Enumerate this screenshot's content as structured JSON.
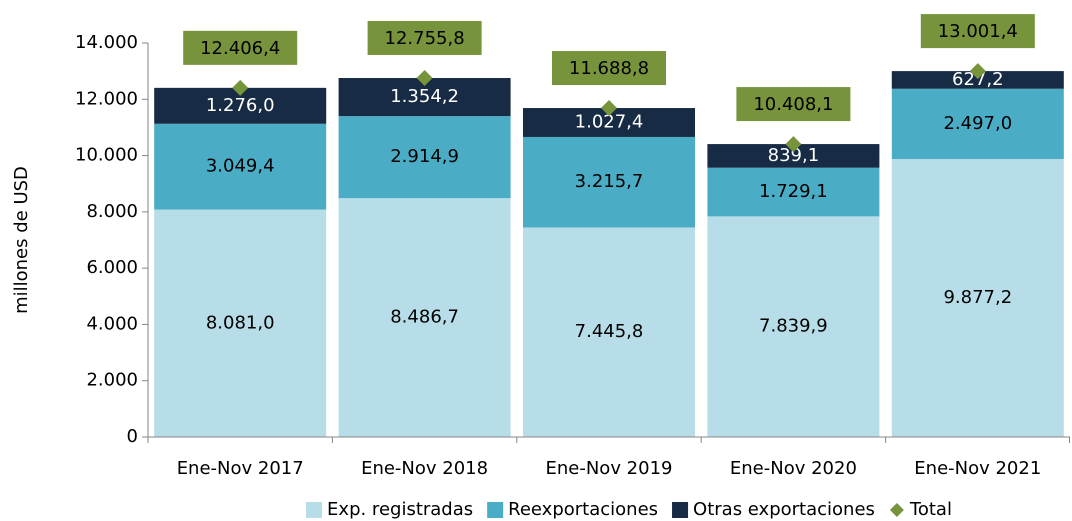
{
  "chart_data": {
    "type": "bar",
    "stacked": true,
    "ylabel": "millones de  USD",
    "categories": [
      "Ene-Nov 2017",
      "Ene-Nov 2018",
      "Ene-Nov 2019",
      "Ene-Nov 2020",
      "Ene-Nov 2021"
    ],
    "series": [
      {
        "name": "Exp. registradas",
        "color": "#b7dde8",
        "label_color": "#000000",
        "values": [
          8081.0,
          8486.7,
          7445.8,
          7839.9,
          9877.2
        ],
        "value_labels": [
          "8.081,0",
          "8.486,7",
          "7.445,8",
          "7.839,9",
          "9.877,2"
        ]
      },
      {
        "name": "Reexportaciones",
        "color": "#4bacc6",
        "label_color": "#000000",
        "values": [
          3049.4,
          2914.9,
          3215.7,
          1729.1,
          2497.0
        ],
        "value_labels": [
          "3.049,4",
          "2.914,9",
          "3.215,7",
          "1.729,1",
          "2.497,0"
        ]
      },
      {
        "name": "Otras exportaciones",
        "color": "#172b45",
        "label_color": "#ffffff",
        "values": [
          1276.0,
          1354.2,
          1027.4,
          839.1,
          627.2
        ],
        "value_labels": [
          "1.276,0",
          "1.354,2",
          "1.027,4",
          "839,1",
          "627,2"
        ]
      },
      {
        "name": "Total",
        "type": "point",
        "marker": "diamond",
        "color": "#77933c",
        "label_color": "#000000",
        "values": [
          12406.4,
          12755.8,
          11688.8,
          10408.1,
          13001.4
        ],
        "value_labels": [
          "12.406,4",
          "12.755,8",
          "11.688,8",
          "10.408,1",
          "13.001,4"
        ]
      }
    ],
    "ylim": [
      0,
      14000
    ],
    "yticks": [
      0,
      {
        "value": 2000,
        "label": "2.000"
      },
      {
        "value": 4000,
        "label": "4.000"
      },
      {
        "value": 6000,
        "label": "6.000"
      },
      {
        "value": 8000,
        "label": "8.000"
      },
      {
        "value": 10000,
        "label": "10.000"
      },
      {
        "value": 12000,
        "label": "12.000"
      },
      {
        "value": 14000,
        "label": "14.000"
      }
    ],
    "legend": "bottom"
  }
}
